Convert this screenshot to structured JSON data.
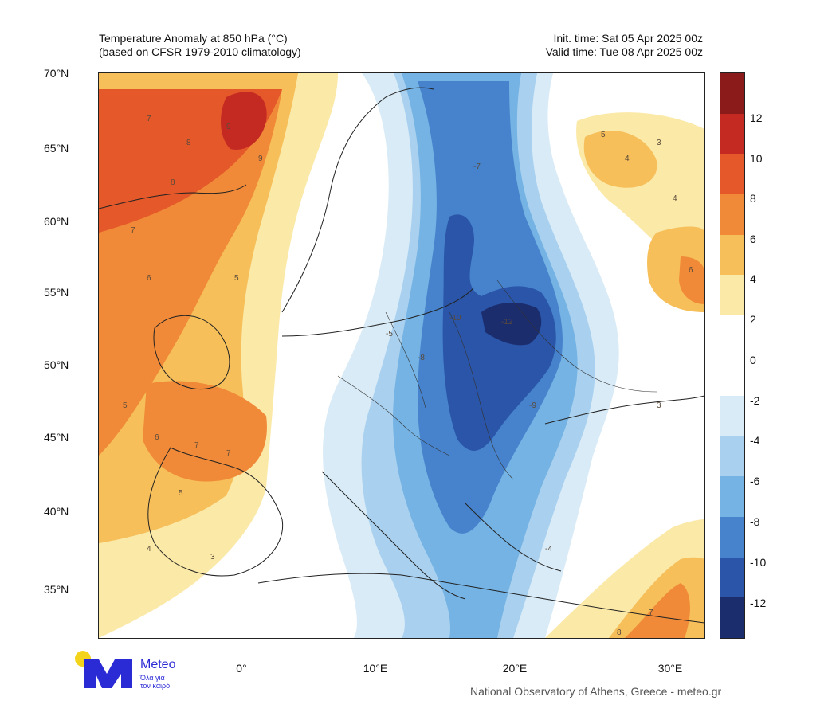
{
  "title": {
    "line1": "Temperature Anomaly at 850 hPa (°C)",
    "line2": "(based on CFSR 1979-2010 climatology)",
    "init": "Init. time: Sat 05 Apr 2025 00z",
    "valid": "Valid time: Tue 08 Apr 2025 00z"
  },
  "axes": {
    "lat_labels": [
      "70°N",
      "65°N",
      "60°N",
      "55°N",
      "50°N",
      "45°N",
      "40°N",
      "35°N"
    ],
    "lon_labels": [
      "0°",
      "10°E",
      "20°E",
      "30°E"
    ]
  },
  "colorbar": {
    "labels": [
      "12",
      "10",
      "8",
      "6",
      "4",
      "2",
      "0",
      "-2",
      "-4",
      "-6",
      "-8",
      "-10",
      "-12"
    ],
    "colors": [
      "#8b1a1a",
      "#c42a22",
      "#e4582a",
      "#f08a38",
      "#f6bf5a",
      "#fbe9a8",
      "#ffffff",
      "#ffffff",
      "#d8ebf7",
      "#a9d1ef",
      "#74b3e3",
      "#4683cc",
      "#2a55a8",
      "#1c2d6e"
    ]
  },
  "map_values": {
    "north_atlantic": [
      "7",
      "8",
      "9",
      "9",
      "8",
      "7",
      "6",
      "5"
    ],
    "iberia_france": [
      "5",
      "6",
      "7",
      "7",
      "5",
      "4",
      "3"
    ],
    "central_europe_east": [
      "-5",
      "-8",
      "-10",
      "-12",
      "-9",
      "-7",
      "-4"
    ],
    "east": [
      "3",
      "4",
      "5",
      "4",
      "3",
      "6",
      "7",
      "8"
    ]
  },
  "logo": {
    "word": "Meteo",
    "tagline1": "Όλα για",
    "tagline2": "τον καιρό"
  },
  "credit": "National Observatory of Athens, Greece - meteo.gr"
}
